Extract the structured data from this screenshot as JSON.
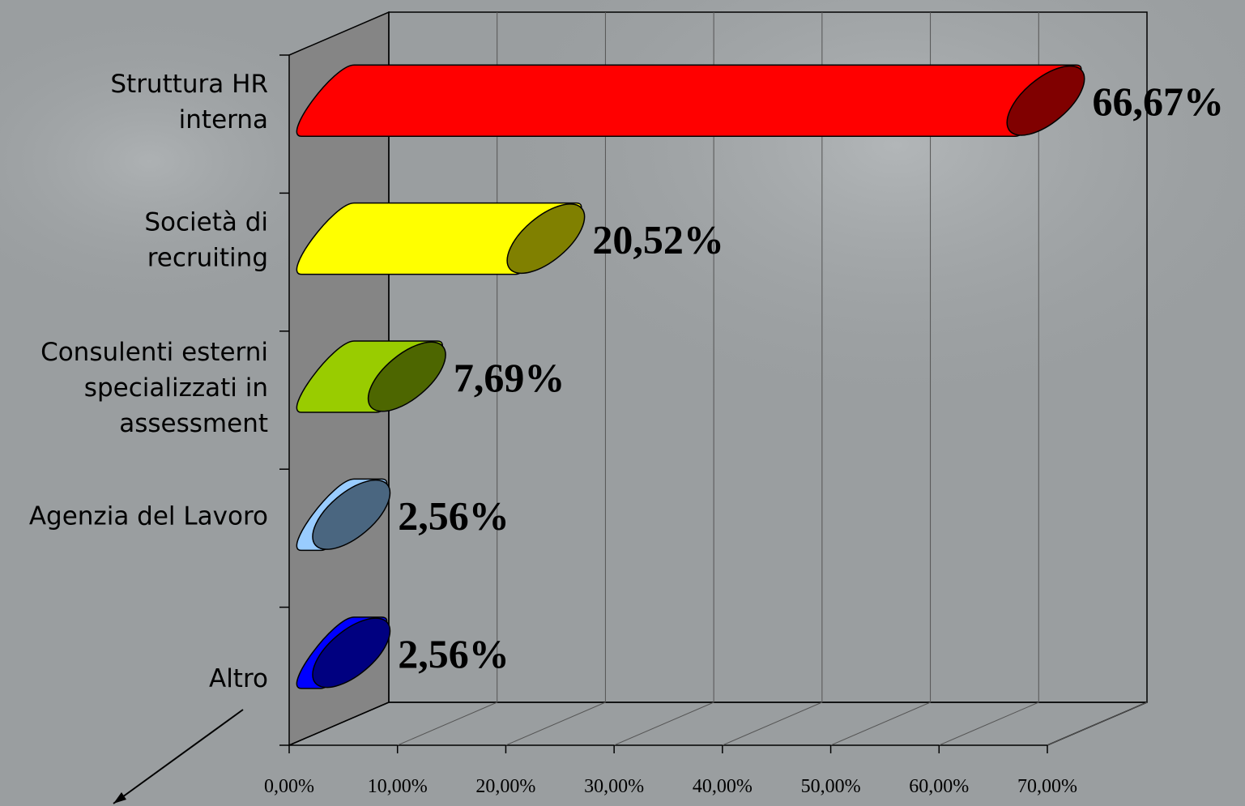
{
  "chart_data": {
    "type": "bar",
    "orientation": "horizontal",
    "categories": [
      "Struttura HR interna",
      "Società di recruiting",
      "Consulenti esterni specializzati in assessment",
      "Agenzia del Lavoro",
      "Altro"
    ],
    "category_label_lines": [
      [
        "Struttura HR",
        "interna"
      ],
      [
        "Società di",
        "recruiting"
      ],
      [
        "Consulenti esterni",
        "specializzati in",
        "assessment"
      ],
      [
        "Agenzia del Lavoro"
      ],
      [
        "Altro"
      ]
    ],
    "values": [
      66.67,
      20.52,
      7.69,
      2.56,
      2.56
    ],
    "data_labels": [
      "66,67%",
      "20,52%",
      "7,69%",
      "2,56%",
      "2,56%"
    ],
    "xticks": [
      "0,00%",
      "10,00%",
      "20,00%",
      "30,00%",
      "40,00%",
      "50,00%",
      "60,00%",
      "70,00%"
    ],
    "xlim": [
      0,
      70
    ],
    "grid": true,
    "colors": [
      {
        "body": "#ff0000",
        "cap": "#800000"
      },
      {
        "body": "#ffff00",
        "cap": "#808000"
      },
      {
        "body": "#99cc00",
        "cap": "#4d6600"
      },
      {
        "body": "#99ccff",
        "cap": "#4a6680"
      },
      {
        "body": "#0000ff",
        "cap": "#000080"
      }
    ]
  }
}
